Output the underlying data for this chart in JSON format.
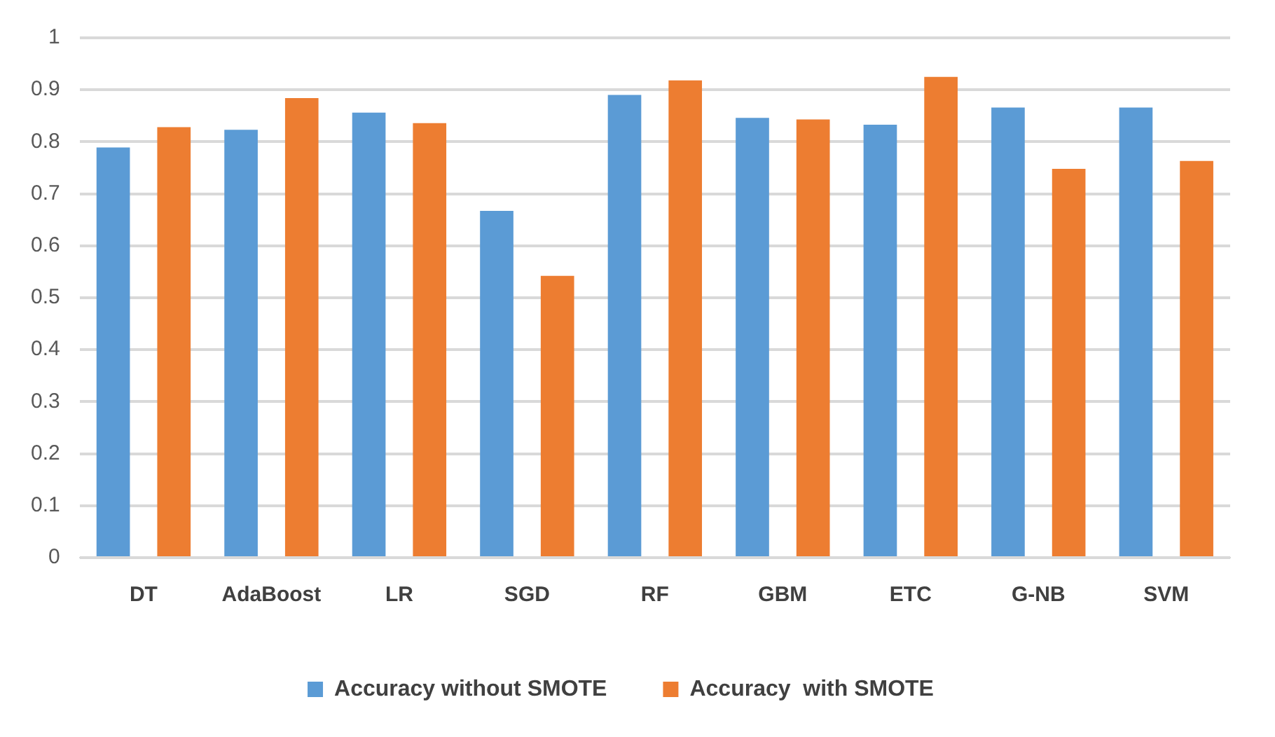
{
  "chart_data": {
    "type": "bar",
    "categories": [
      "DT",
      "AdaBoost",
      "LR",
      "SGD",
      "RF",
      "GBM",
      "ETC",
      "G-NB",
      "SVM"
    ],
    "series": [
      {
        "name": "Accuracy without SMOTE",
        "color": "#5b9bd5",
        "values": [
          0.789,
          0.823,
          0.856,
          0.667,
          0.89,
          0.846,
          0.833,
          0.866,
          0.866
        ]
      },
      {
        "name": "Accuracy  with SMOTE",
        "color": "#ed7d31",
        "values": [
          0.828,
          0.884,
          0.836,
          0.542,
          0.918,
          0.843,
          0.925,
          0.748,
          0.763
        ]
      }
    ],
    "ylim": [
      0,
      1
    ],
    "yticks": [
      0,
      0.1,
      0.2,
      0.3,
      0.4,
      0.5,
      0.6,
      0.7,
      0.8,
      0.9,
      1
    ],
    "grid": "y",
    "legend": "bottom"
  }
}
